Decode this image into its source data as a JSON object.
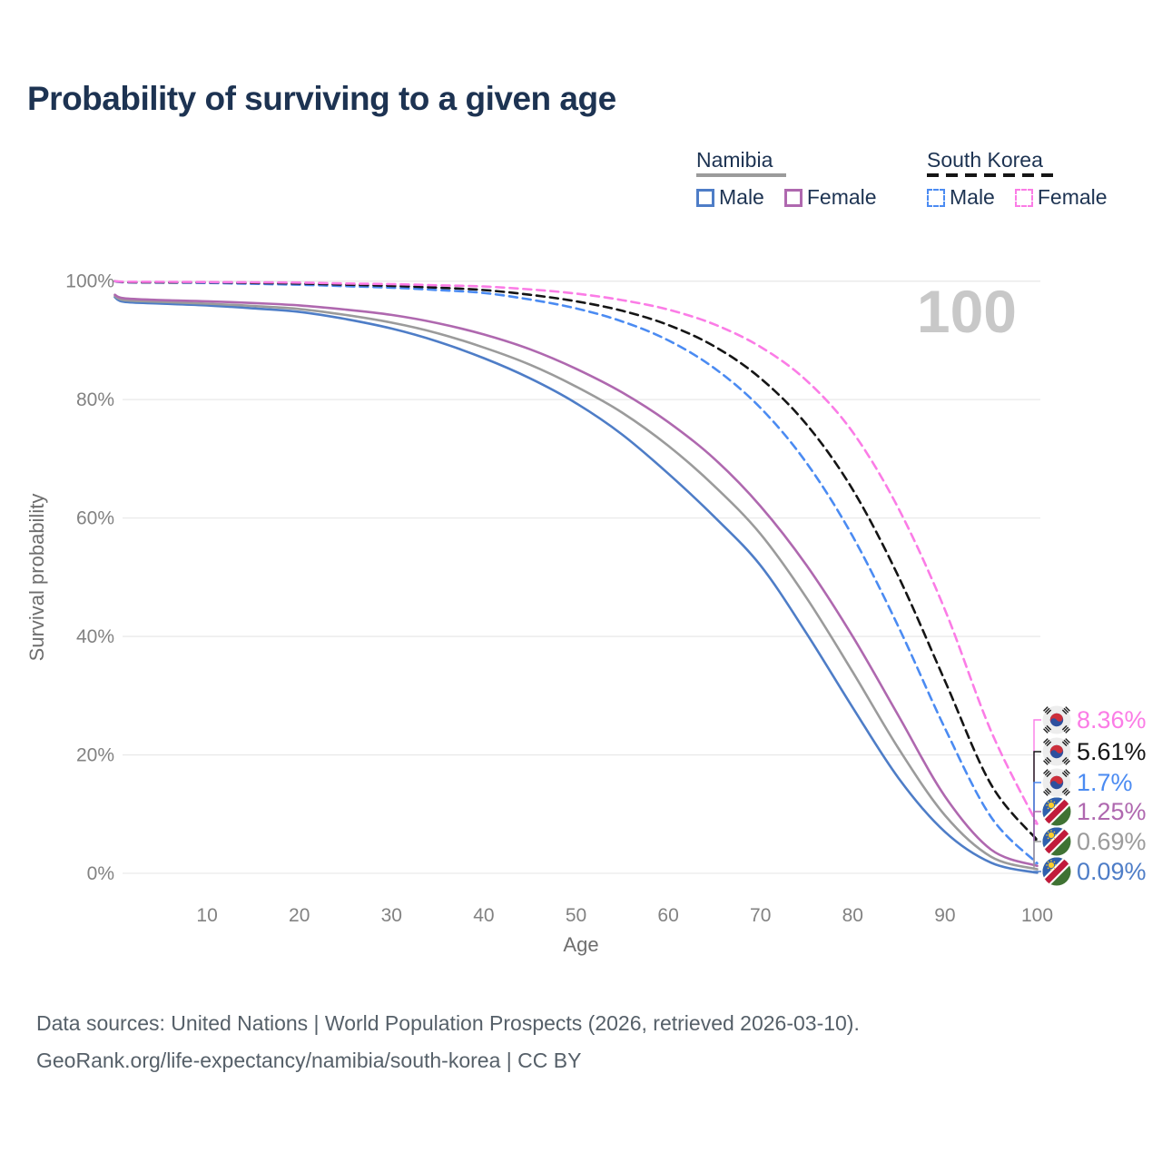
{
  "title": "Probability of surviving to a given age",
  "legend": {
    "groups": [
      {
        "country": "Namibia",
        "line_style": "solid",
        "line_color": "#9b9b9b",
        "items": [
          {
            "label": "Male",
            "color": "#4e7dc7"
          },
          {
            "label": "Female",
            "color": "#af68af"
          }
        ]
      },
      {
        "country": "South Korea",
        "line_style": "dashed",
        "line_color": "#151515",
        "items": [
          {
            "label": "Male",
            "color": "#4b8bf2"
          },
          {
            "label": "Female",
            "color": "#fb7ce6"
          }
        ]
      }
    ]
  },
  "chart_data": {
    "type": "line",
    "title": "Probability of surviving to a given age",
    "xlabel": "Age",
    "ylabel": "Survival probability",
    "xlim": [
      0,
      100
    ],
    "ylim": [
      0,
      100
    ],
    "x_tick_labels": [
      "10",
      "20",
      "30",
      "40",
      "50",
      "60",
      "70",
      "80",
      "90",
      "100"
    ],
    "y_tick_labels": [
      "0%",
      "20%",
      "40%",
      "60%",
      "80%",
      "100%"
    ],
    "grid": "horizontal-only",
    "legend_position": "top-right",
    "hover_age_indicator": "100",
    "ages": [
      0,
      1,
      5,
      10,
      15,
      20,
      25,
      30,
      35,
      40,
      45,
      50,
      55,
      60,
      65,
      70,
      75,
      80,
      85,
      90,
      95,
      100
    ],
    "series": [
      {
        "name": "Namibia Male",
        "country": "Namibia",
        "sex": "Male",
        "color": "#4e7dc7",
        "line_style": "solid",
        "flag": "namibia",
        "end_label": "0.09%",
        "values": [
          97.3,
          96.5,
          96.2,
          95.9,
          95.4,
          94.8,
          93.6,
          92.0,
          89.8,
          87.0,
          83.6,
          79.4,
          74.1,
          67.5,
          60.2,
          52.0,
          40.5,
          28.0,
          16.0,
          7.0,
          1.8,
          0.09
        ]
      },
      {
        "name": "Namibia Both sexes",
        "country": "Namibia",
        "sex": "Both sexes",
        "color": "#9b9b9b",
        "line_style": "solid",
        "flag": "namibia",
        "end_label": "0.69%",
        "values": [
          97.5,
          96.8,
          96.5,
          96.2,
          95.8,
          95.3,
          94.3,
          93.0,
          91.2,
          88.8,
          85.9,
          82.2,
          77.8,
          72.2,
          65.4,
          57.3,
          46.5,
          34.0,
          21.0,
          9.8,
          2.8,
          0.69
        ]
      },
      {
        "name": "Namibia Female",
        "country": "Namibia",
        "sex": "Female",
        "color": "#af68af",
        "line_style": "solid",
        "flag": "namibia",
        "end_label": "1.25%",
        "values": [
          97.7,
          97.1,
          96.8,
          96.6,
          96.3,
          95.9,
          95.2,
          94.3,
          92.9,
          91.0,
          88.5,
          85.2,
          81.2,
          76.2,
          70.0,
          62.0,
          52.0,
          40.0,
          26.5,
          13.0,
          4.0,
          1.25
        ]
      },
      {
        "name": "South Korea Male",
        "country": "South Korea",
        "sex": "Male",
        "color": "#4b8bf2",
        "line_style": "dashed",
        "flag": "south-korea",
        "end_label": "1.7%",
        "values": [
          100,
          99.8,
          99.75,
          99.7,
          99.55,
          99.4,
          99.15,
          98.9,
          98.5,
          98.0,
          96.9,
          95.4,
          93.2,
          90.0,
          85.3,
          78.6,
          69.3,
          56.9,
          41.5,
          24.5,
          9.5,
          1.7
        ]
      },
      {
        "name": "South Korea Both sexes",
        "country": "South Korea",
        "sex": "Both sexes",
        "color": "#151515",
        "line_style": "dashed",
        "flag": "south-korea",
        "end_label": "5.61%",
        "values": [
          100,
          99.85,
          99.8,
          99.8,
          99.7,
          99.6,
          99.4,
          99.2,
          98.9,
          98.5,
          97.7,
          96.6,
          95.0,
          92.6,
          89.0,
          83.6,
          75.8,
          64.8,
          50.0,
          32.5,
          15.0,
          5.61
        ]
      },
      {
        "name": "South Korea Female",
        "country": "South Korea",
        "sex": "Female",
        "color": "#fb7ce6",
        "line_style": "dashed",
        "flag": "south-korea",
        "end_label": "8.36%",
        "values": [
          100,
          99.9,
          99.88,
          99.85,
          99.8,
          99.75,
          99.6,
          99.5,
          99.3,
          99.1,
          98.6,
          97.9,
          96.8,
          95.2,
          92.7,
          88.9,
          83.2,
          74.5,
          61.5,
          44.5,
          24.0,
          8.36
        ]
      }
    ]
  },
  "footer": {
    "line1": "Data sources: United Nations | World Population Prospects (2026, retrieved 2026-03-10).",
    "line2": "GeoRank.org/life-expectancy/namibia/south-korea | CC BY"
  }
}
